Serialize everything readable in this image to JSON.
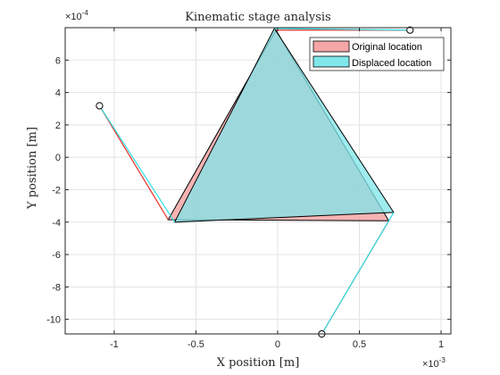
{
  "chart_data": {
    "type": "polygon-line",
    "title": "Kinematic stage analysis",
    "xlabel": "X position [m]",
    "ylabel": "Y position [m]",
    "x_exponent_label": "×10",
    "x_exponent_power": "-3",
    "y_exponent_label": "×10",
    "y_exponent_power": "-4",
    "xlim": [
      -0.0013,
      0.00106
    ],
    "ylim": [
      -0.00109,
      0.0008
    ],
    "xticks": [
      -0.001,
      -0.0005,
      0,
      0.0005,
      0.001
    ],
    "xtick_labels": [
      "-1",
      "-0.5",
      "0",
      "0.5",
      "1"
    ],
    "yticks": [
      -0.001,
      -0.0008,
      -0.0006,
      -0.0004,
      -0.0002,
      0,
      0.0002,
      0.0004,
      0.0006
    ],
    "ytick_labels": [
      "-10",
      "-8",
      "-6",
      "-4",
      "-2",
      "0",
      "2",
      "4",
      "6"
    ],
    "grid": true,
    "legend_placement": "top-right",
    "anchors": [
      {
        "x": -0.00109,
        "y": 0.000318
      },
      {
        "x": 0.00081,
        "y": 0.000785
      },
      {
        "x": 0.00027,
        "y": -0.00109
      }
    ],
    "series": [
      {
        "name": "Original location",
        "fill": "#f4a6a6",
        "edge": "#000000",
        "link_color": "#e8332a",
        "triangle": [
          {
            "x": -1e-05,
            "y": 0.000785
          },
          {
            "x": -0.00067,
            "y": -0.000385
          },
          {
            "x": 0.00068,
            "y": -0.000392
          }
        ]
      },
      {
        "name": "Displaced location",
        "fill": "#7fe6ea",
        "edge": "#000000",
        "link_color": "#29e0e6",
        "triangle": [
          {
            "x": -2e-05,
            "y": 0.000795
          },
          {
            "x": -0.00063,
            "y": -0.0004
          },
          {
            "x": 0.00071,
            "y": -0.00034
          }
        ]
      }
    ]
  }
}
